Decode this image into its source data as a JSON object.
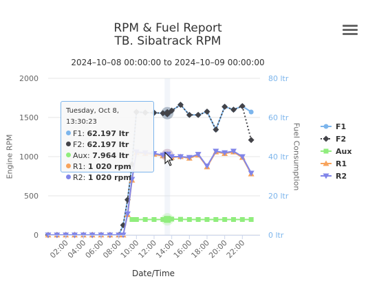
{
  "title": "RPM & Fuel Report",
  "subtitle_line": "TB. Sibatrack RPM",
  "date_range": "2024–10–08 00:00:00 to 2024–10–09 00:00:00",
  "menu_icon": "hamburger-menu-icon",
  "tooltip": {
    "header": "Tuesday, Oct 8, 13:30:23",
    "rows": [
      {
        "name": "F1",
        "value": "62.197 ltr",
        "color": "#7cb5ec"
      },
      {
        "name": "F2",
        "value": "62.197 ltr",
        "color": "#434348"
      },
      {
        "name": "Aux",
        "value": "7.964 ltr",
        "color": "#90ed7d"
      },
      {
        "name": "R1",
        "value": "1 020 rpm",
        "color": "#f7a35c"
      },
      {
        "name": "R2",
        "value": "1 020 rpm",
        "color": "#8085e9"
      }
    ]
  },
  "chart_data": {
    "type": "line",
    "xlabel": "Date/Time",
    "ylabel_left": "Engine RPM",
    "ylabel_right": "Fuel Consumption",
    "x_ticks": [
      "02:00",
      "04:00",
      "06:00",
      "08:00",
      "10:00",
      "12:00",
      "14:00",
      "16:00",
      "18:00",
      "20:00",
      "22:00"
    ],
    "x_range_hours": [
      0,
      24
    ],
    "y_left_ticks": [
      "0",
      "500",
      "1000",
      "1500",
      "2000"
    ],
    "y_left_range": [
      0,
      2000
    ],
    "y_right_ticks": [
      "0 ltr",
      "20 ltr",
      "40 ltr",
      "60 ltr",
      "80 ltr"
    ],
    "y_right_range": [
      0,
      80
    ],
    "grid": true,
    "legend_position": "right",
    "crosshair_hour": 13.5,
    "x_hours": [
      0,
      1,
      2,
      3,
      4,
      5,
      6,
      7,
      8,
      8.5,
      9,
      9.5,
      10,
      11,
      12,
      13,
      13.5,
      14,
      15,
      16,
      17,
      18,
      19,
      20,
      21,
      22,
      23
    ],
    "series": [
      {
        "name": "F1",
        "axis": "right",
        "color": "#7cb5ec",
        "marker": "circle",
        "dash": "none",
        "values": [
          0,
          0,
          0,
          0,
          0,
          0,
          0,
          0,
          0,
          5,
          18,
          36,
          62.8,
          62.5,
          62.4,
          62.2,
          62.197,
          63.5,
          66.5,
          61.3,
          61.3,
          63.0,
          53.8,
          65.5,
          64.0,
          65.8,
          62.8
        ]
      },
      {
        "name": "F2",
        "axis": "right",
        "color": "#434348",
        "marker": "diamond",
        "dash": "dot",
        "values": [
          0,
          0,
          0,
          0,
          0,
          0,
          0,
          0,
          0,
          5,
          18,
          36,
          62.8,
          62.5,
          62.4,
          62.2,
          62.197,
          63.5,
          66.5,
          61.3,
          61.3,
          63.0,
          53.8,
          65.5,
          64.0,
          65.8,
          48.5
        ]
      },
      {
        "name": "Aux",
        "axis": "right",
        "color": "#90ed7d",
        "marker": "square",
        "dash": "none",
        "values": [
          null,
          null,
          null,
          null,
          null,
          null,
          null,
          null,
          null,
          null,
          null,
          7.9,
          7.9,
          7.9,
          7.9,
          7.9,
          7.964,
          8.1,
          8.0,
          7.9,
          7.9,
          7.9,
          7.9,
          7.9,
          7.9,
          7.9,
          7.9
        ]
      },
      {
        "name": "R1",
        "axis": "left",
        "color": "#f7a35c",
        "marker": "triangle",
        "dash": "none",
        "values": [
          0,
          0,
          0,
          0,
          0,
          0,
          0,
          0,
          0,
          0,
          260,
          700,
          1050,
          1040,
          1030,
          1010,
          1020,
          990,
          1000,
          980,
          1020,
          870,
          1060,
          1040,
          1060,
          990,
          780
        ]
      },
      {
        "name": "R2",
        "axis": "left",
        "color": "#8085e9",
        "marker": "triangle-down",
        "dash": "none",
        "values": [
          0,
          0,
          0,
          0,
          0,
          0,
          0,
          0,
          0,
          0,
          270,
          710,
          1060,
          1050,
          1040,
          1020,
          1020,
          1000,
          1000,
          990,
          1030,
          880,
          1070,
          1050,
          1070,
          1000,
          790
        ]
      }
    ]
  }
}
